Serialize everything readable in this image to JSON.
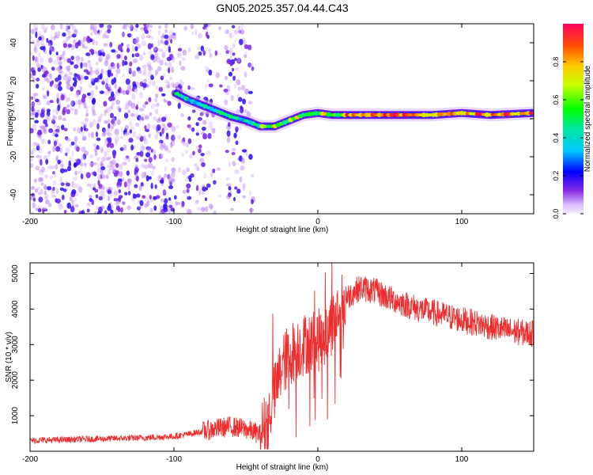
{
  "title": "GN05.2025.357.04.44.C43",
  "chart_data": [
    {
      "type": "heatmap",
      "name": "spectrogram",
      "xlabel": "Height of straight line (km)",
      "ylabel": "Frequency (Hz)",
      "xlim": [
        -200,
        150
      ],
      "ylim": [
        -50,
        50
      ],
      "xticks": [
        -200,
        -100,
        0,
        100
      ],
      "yticks": [
        -40,
        -20,
        0,
        20,
        40
      ],
      "colorbar": {
        "label": "Normalized spectral amplitude",
        "range": [
          0.0,
          1.0
        ],
        "ticks": [
          "0.0",
          "0.2",
          "0.4",
          "0.6",
          "0.8"
        ]
      },
      "ridge_track": {
        "x": [
          -100,
          -90,
          -80,
          -70,
          -60,
          -50,
          -40,
          -30,
          -20,
          -10,
          0,
          10,
          20,
          40,
          60,
          80,
          100,
          120,
          150
        ],
        "freq": [
          14,
          10,
          7,
          4,
          1,
          -1,
          -4,
          -4,
          -1,
          2,
          3,
          2,
          2,
          2,
          2,
          2,
          3,
          2,
          3
        ]
      },
      "noise_region_x": [
        -200,
        -45
      ]
    },
    {
      "type": "line",
      "name": "snr",
      "xlabel": "Height of straight line (km)",
      "ylabel": "SNR (10 * v/v)",
      "xlim": [
        -200,
        150
      ],
      "ylim": [
        0,
        5300
      ],
      "xticks": [
        -200,
        -100,
        0,
        100
      ],
      "yticks": [
        1000,
        2000,
        3000,
        4000,
        5000
      ],
      "series": [
        {
          "name": "SNR",
          "color": "#ee2e2e",
          "x": [
            -200,
            -180,
            -160,
            -140,
            -120,
            -100,
            -90,
            -80,
            -70,
            -60,
            -50,
            -40,
            -35,
            -30,
            -25,
            -20,
            -15,
            -10,
            -5,
            0,
            5,
            10,
            15,
            20,
            25,
            30,
            40,
            50,
            60,
            70,
            80,
            90,
            100,
            110,
            120,
            130,
            140,
            150
          ],
          "y": [
            300,
            320,
            340,
            360,
            380,
            420,
            480,
            560,
            640,
            700,
            620,
            480,
            900,
            1600,
            2400,
            2700,
            2900,
            3000,
            3100,
            3100,
            3300,
            3600,
            4000,
            4300,
            4500,
            4600,
            4500,
            4300,
            4150,
            4000,
            3900,
            3800,
            3700,
            3600,
            3500,
            3400,
            3350,
            3300
          ]
        }
      ]
    }
  ]
}
